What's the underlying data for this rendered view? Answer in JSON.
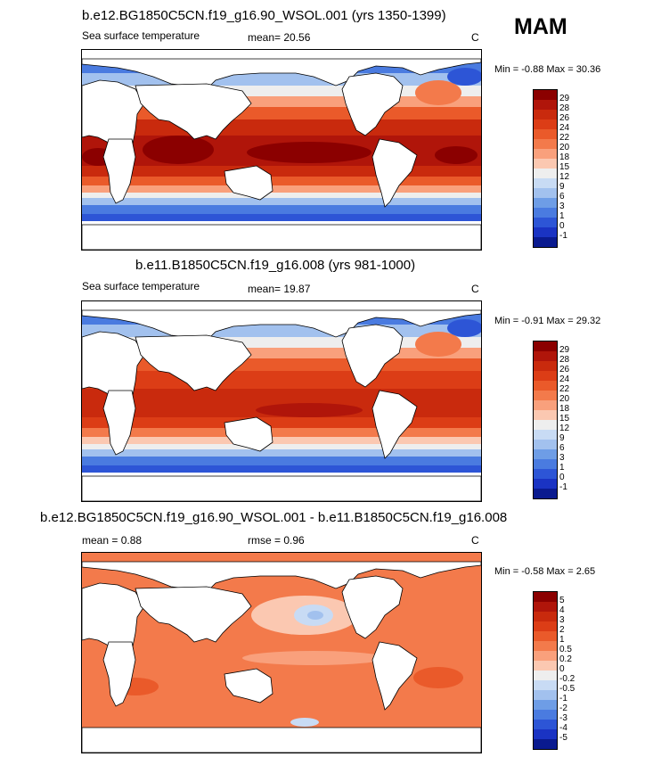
{
  "season": "MAM",
  "panels": [
    {
      "title": "b.e12.BG1850C5CN.f19_g16.90_WSOL.001 (yrs 1350-1399)",
      "left_label": "Sea surface temperature",
      "stat_label": "mean=  20.56",
      "units": "C",
      "minmax": "Min =  -0.88 Max =  30.36",
      "colorbar": {
        "levels": [
          "29",
          "28",
          "26",
          "24",
          "22",
          "20",
          "18",
          "15",
          "12",
          "9",
          "6",
          "3",
          "1",
          "0",
          "-1"
        ],
        "colors": [
          "#8b0000",
          "#b0150a",
          "#c92a0d",
          "#dc3d16",
          "#ea5a2a",
          "#f37a4b",
          "#f9a07c",
          "#fbc8b1",
          "#eeeeee",
          "#c8dbf4",
          "#a2c1ee",
          "#6e9de6",
          "#4a7be0",
          "#2d55d6",
          "#1a33c3",
          "#0a1a8f"
        ]
      }
    },
    {
      "title": "b.e11.B1850C5CN.f19_g16.008 (yrs 981-1000)",
      "left_label": "Sea surface temperature",
      "stat_label": "mean=  19.87",
      "units": "C",
      "minmax": "Min =  -0.91 Max =  29.32",
      "colorbar": {
        "levels": [
          "29",
          "28",
          "26",
          "24",
          "22",
          "20",
          "18",
          "15",
          "12",
          "9",
          "6",
          "3",
          "1",
          "0",
          "-1"
        ],
        "colors": [
          "#8b0000",
          "#b0150a",
          "#c92a0d",
          "#dc3d16",
          "#ea5a2a",
          "#f37a4b",
          "#f9a07c",
          "#fbc8b1",
          "#eeeeee",
          "#c8dbf4",
          "#a2c1ee",
          "#6e9de6",
          "#4a7be0",
          "#2d55d6",
          "#1a33c3",
          "#0a1a8f"
        ]
      }
    },
    {
      "title": "b.e12.BG1850C5CN.f19_g16.90_WSOL.001 - b.e11.B1850C5CN.f19_g16.008",
      "left_label": "mean =  0.88",
      "stat_label": "rmse =  0.96",
      "units": "C",
      "minmax": "Min =  -0.58 Max =  2.65",
      "colorbar": {
        "levels": [
          "5",
          "4",
          "3",
          "2",
          "1",
          "0.5",
          "0.2",
          "0",
          "-0.2",
          "-0.5",
          "-1",
          "-2",
          "-3",
          "-4",
          "-5"
        ],
        "colors": [
          "#8b0000",
          "#b0150a",
          "#c92a0d",
          "#dc3d16",
          "#ea5a2a",
          "#f37a4b",
          "#f9a07c",
          "#fbc8b1",
          "#eeeeee",
          "#c8dbf4",
          "#a2c1ee",
          "#6e9de6",
          "#4a7be0",
          "#2d55d6",
          "#1a33c3",
          "#0a1a8f"
        ]
      }
    }
  ],
  "map_colors": {
    "land": "#ffffff",
    "outline": "#000000"
  }
}
